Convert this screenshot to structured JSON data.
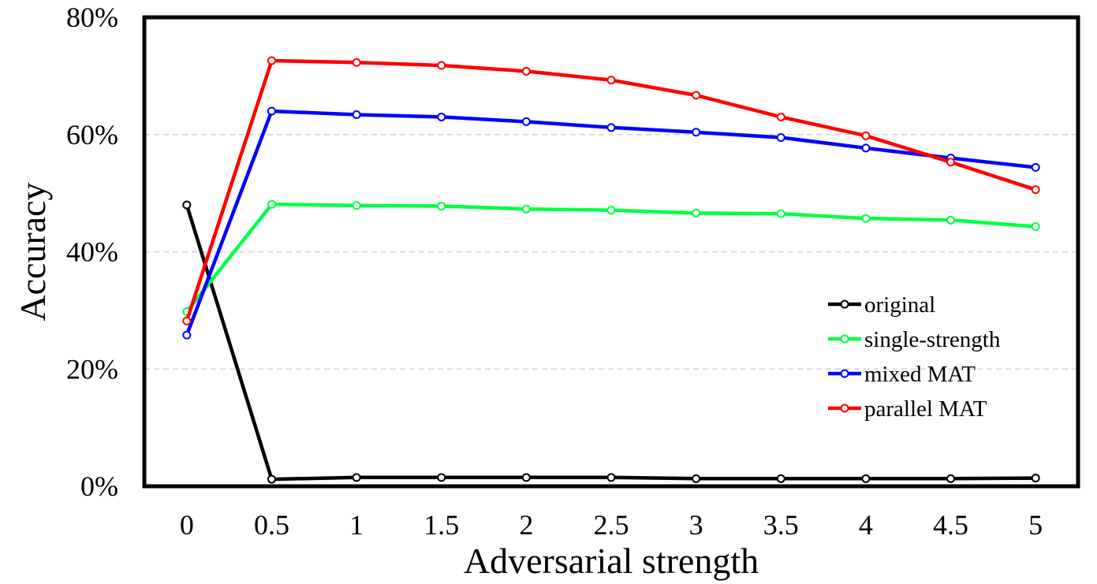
{
  "chart_data": {
    "type": "line",
    "title": "",
    "xlabel": "Adversarial strength",
    "ylabel": "Accuracy",
    "x": [
      0,
      0.5,
      1,
      1.5,
      2,
      2.5,
      3,
      3.5,
      4,
      4.5,
      5
    ],
    "x_tick_labels": [
      "0",
      "0.5",
      "1",
      "1.5",
      "2",
      "2.5",
      "3",
      "3.5",
      "4",
      "4.5",
      "5"
    ],
    "y_ticks": [
      0,
      20,
      40,
      60,
      80
    ],
    "y_tick_labels": [
      "0%",
      "20%",
      "40%",
      "60%",
      "80%"
    ],
    "y_unit": "%",
    "ylim": [
      0,
      80
    ],
    "grid": "horizontal dashed",
    "legend_position": "right, lower-middle",
    "series": [
      {
        "name": "original",
        "color": "#000000",
        "values": [
          48.0,
          1.2,
          1.5,
          1.5,
          1.5,
          1.5,
          1.3,
          1.3,
          1.3,
          1.3,
          1.4
        ]
      },
      {
        "name": "single-strength",
        "color": "#00ff44",
        "values": [
          29.8,
          48.1,
          47.9,
          47.8,
          47.3,
          47.1,
          46.6,
          46.5,
          45.7,
          45.4,
          44.3
        ]
      },
      {
        "name": "mixed MAT",
        "color": "#0000ff",
        "values": [
          25.8,
          64.0,
          63.4,
          63.0,
          62.2,
          61.2,
          60.4,
          59.5,
          57.7,
          56.0,
          54.4
        ]
      },
      {
        "name": "parallel MAT",
        "color": "#ff0000",
        "values": [
          28.2,
          72.6,
          72.3,
          71.8,
          70.8,
          69.3,
          66.7,
          63.0,
          59.8,
          55.3,
          50.6
        ]
      }
    ]
  }
}
